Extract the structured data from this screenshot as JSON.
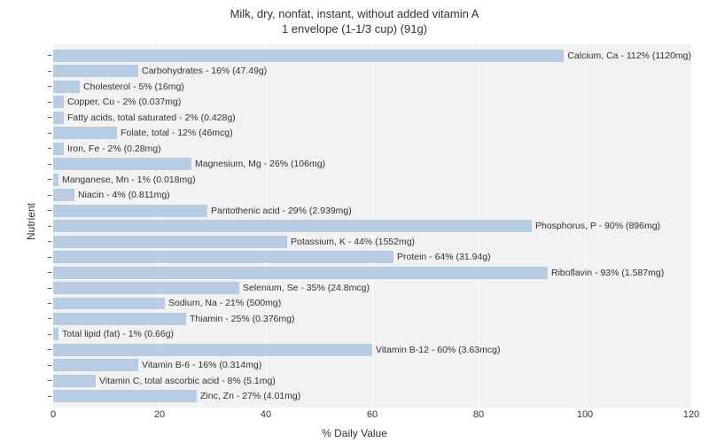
{
  "chart": {
    "type": "horizontal-bar",
    "title_line1": "Milk, dry, nonfat, instant, without added vitamin A",
    "title_line2": "1 envelope (1-1/3 cup) (91g)",
    "title_fontsize": 13,
    "title_color": "#333333",
    "xlabel": "% Daily Value",
    "ylabel": "Nutrient",
    "axis_label_fontsize": 12,
    "bar_label_fontsize": 10.5,
    "tick_fontsize": 11,
    "xlim": [
      0,
      120
    ],
    "xtick_step": 20,
    "xticks": [
      0,
      20,
      40,
      60,
      80,
      100,
      120
    ],
    "background_color": "#ffffff",
    "plot_background_color": "#f2f2f2",
    "grid_color": "#ffffff",
    "bar_color": "#b8cce4",
    "text_color": "#333333",
    "bar_height_ratio": 0.8,
    "nutrients": [
      {
        "label": "Calcium, Ca - 112% (1120mg)",
        "value": 112
      },
      {
        "label": "Carbohydrates - 16% (47.49g)",
        "value": 16
      },
      {
        "label": "Cholesterol - 5% (16mg)",
        "value": 5
      },
      {
        "label": "Copper, Cu - 2% (0.037mg)",
        "value": 2
      },
      {
        "label": "Fatty acids, total saturated - 2% (0.428g)",
        "value": 2
      },
      {
        "label": "Folate, total - 12% (46mcg)",
        "value": 12
      },
      {
        "label": "Iron, Fe - 2% (0.28mg)",
        "value": 2
      },
      {
        "label": "Magnesium, Mg - 26% (106mg)",
        "value": 26
      },
      {
        "label": "Manganese, Mn - 1% (0.018mg)",
        "value": 1
      },
      {
        "label": "Niacin - 4% (0.811mg)",
        "value": 4
      },
      {
        "label": "Pantothenic acid - 29% (2.939mg)",
        "value": 29
      },
      {
        "label": "Phosphorus, P - 90% (896mg)",
        "value": 90
      },
      {
        "label": "Potassium, K - 44% (1552mg)",
        "value": 44
      },
      {
        "label": "Protein - 64% (31.94g)",
        "value": 64
      },
      {
        "label": "Riboflavin - 93% (1.587mg)",
        "value": 93
      },
      {
        "label": "Selenium, Se - 35% (24.8mcg)",
        "value": 35
      },
      {
        "label": "Sodium, Na - 21% (500mg)",
        "value": 21
      },
      {
        "label": "Thiamin - 25% (0.376mg)",
        "value": 25
      },
      {
        "label": "Total lipid (fat) - 1% (0.66g)",
        "value": 1
      },
      {
        "label": "Vitamin B-12 - 60% (3.63mcg)",
        "value": 60
      },
      {
        "label": "Vitamin B-6 - 16% (0.314mg)",
        "value": 16
      },
      {
        "label": "Vitamin C, total ascorbic acid - 8% (5.1mg)",
        "value": 8
      },
      {
        "label": "Zinc, Zn - 27% (4.01mg)",
        "value": 27
      }
    ]
  }
}
